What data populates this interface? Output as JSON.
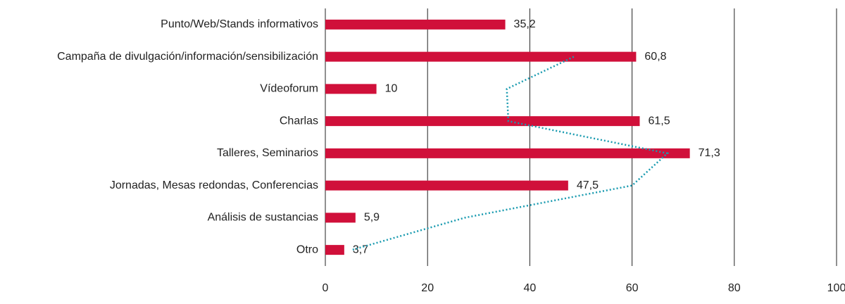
{
  "chart_data": {
    "type": "bar",
    "orientation": "horizontal",
    "categories": [
      "Punto/Web/Stands informativos",
      "Campaña de divulgación/información/sensibilización",
      "Vídeoforum",
      "Charlas",
      "Talleres, Seminarios",
      "Jornadas, Mesas redondas, Conferencias",
      "Análisis de sustancias",
      "Otro"
    ],
    "series": [
      {
        "type": "bar",
        "color": "#d0103a",
        "values": [
          35.2,
          60.8,
          10,
          61.5,
          71.3,
          47.5,
          5.9,
          3.7
        ],
        "value_labels": [
          "35,2",
          "60,8",
          "10",
          "61,5",
          "71,3",
          "47,5",
          "5,9",
          "3,7"
        ]
      },
      {
        "type": "line",
        "color": "#1a9bb0",
        "dotted": true,
        "values": [
          null,
          48.6,
          35.5,
          35.8,
          66.9,
          60.0,
          27.3,
          5.2
        ]
      }
    ],
    "xlim": [
      0,
      100
    ],
    "xticks": [
      0,
      20,
      40,
      60,
      80,
      100
    ],
    "grid": true
  }
}
